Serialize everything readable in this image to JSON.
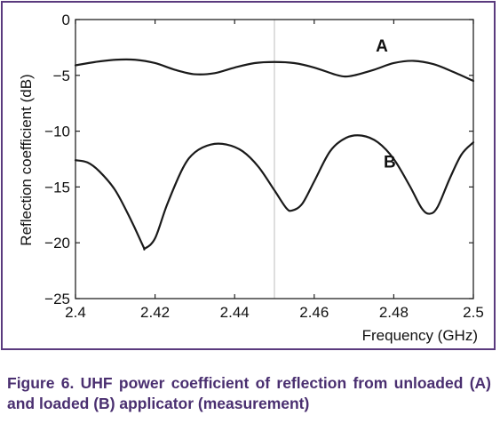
{
  "chart_data": {
    "type": "line",
    "xlabel": "Frequency (GHz)",
    "ylabel": "Reflection coefficient (dB)",
    "xlim": [
      2.4,
      2.5
    ],
    "ylim": [
      -25,
      0
    ],
    "xticks": [
      2.4,
      2.42,
      2.44,
      2.46,
      2.48,
      2.5
    ],
    "xtick_labels": [
      "2.4",
      "2.42",
      "2.44",
      "2.46",
      "2.48",
      "2.5"
    ],
    "yticks": [
      0,
      -5,
      -10,
      -15,
      -20,
      -25
    ],
    "ytick_labels": [
      "0",
      "−5",
      "−10",
      "−15",
      "−20",
      "−25"
    ],
    "grid": "single vertical line at 2.45",
    "series": [
      {
        "name": "A",
        "label_at": {
          "x": 2.477,
          "y": -2.3
        },
        "color": "#1a1a1a",
        "points": [
          [
            2.4,
            -4.1
          ],
          [
            2.405,
            -3.8
          ],
          [
            2.41,
            -3.6
          ],
          [
            2.415,
            -3.6
          ],
          [
            2.42,
            -3.9
          ],
          [
            2.425,
            -4.5
          ],
          [
            2.43,
            -4.9
          ],
          [
            2.435,
            -4.8
          ],
          [
            2.44,
            -4.3
          ],
          [
            2.445,
            -3.9
          ],
          [
            2.45,
            -3.8
          ],
          [
            2.455,
            -3.9
          ],
          [
            2.46,
            -4.3
          ],
          [
            2.465,
            -4.9
          ],
          [
            2.4675,
            -5.1
          ],
          [
            2.47,
            -5.0
          ],
          [
            2.475,
            -4.5
          ],
          [
            2.48,
            -3.9
          ],
          [
            2.485,
            -3.7
          ],
          [
            2.49,
            -4.0
          ],
          [
            2.495,
            -4.7
          ],
          [
            2.5,
            -5.5
          ]
        ]
      },
      {
        "name": "B",
        "label_at": {
          "x": 2.479,
          "y": -12.7
        },
        "color": "#1a1a1a",
        "points": [
          [
            2.4,
            -12.6
          ],
          [
            2.403,
            -12.8
          ],
          [
            2.406,
            -13.6
          ],
          [
            2.41,
            -15.3
          ],
          [
            2.414,
            -18.0
          ],
          [
            2.417,
            -20.3
          ],
          [
            2.4175,
            -20.5
          ],
          [
            2.42,
            -19.6
          ],
          [
            2.423,
            -16.6
          ],
          [
            2.427,
            -13.3
          ],
          [
            2.43,
            -11.9
          ],
          [
            2.434,
            -11.2
          ],
          [
            2.438,
            -11.2
          ],
          [
            2.442,
            -11.8
          ],
          [
            2.446,
            -13.2
          ],
          [
            2.45,
            -15.3
          ],
          [
            2.453,
            -16.9
          ],
          [
            2.4545,
            -17.1
          ],
          [
            2.457,
            -16.5
          ],
          [
            2.46,
            -14.5
          ],
          [
            2.464,
            -11.8
          ],
          [
            2.468,
            -10.6
          ],
          [
            2.472,
            -10.4
          ],
          [
            2.476,
            -11.0
          ],
          [
            2.48,
            -12.5
          ],
          [
            2.484,
            -14.9
          ],
          [
            2.487,
            -16.9
          ],
          [
            2.489,
            -17.4
          ],
          [
            2.491,
            -16.8
          ],
          [
            2.494,
            -14.3
          ],
          [
            2.497,
            -12.1
          ],
          [
            2.5,
            -11.0
          ]
        ]
      }
    ],
    "annotations": [
      "A",
      "B"
    ]
  },
  "caption": "Figure 6. UHF power coefficient of reflection from unloaded (A) and loaded (B) applicator (measurement)",
  "colors": {
    "frame": "#5a3a7e",
    "caption": "#4a2f70",
    "line": "#1a1a1a",
    "axes": "#222222",
    "grid": "#bdbdbd"
  }
}
